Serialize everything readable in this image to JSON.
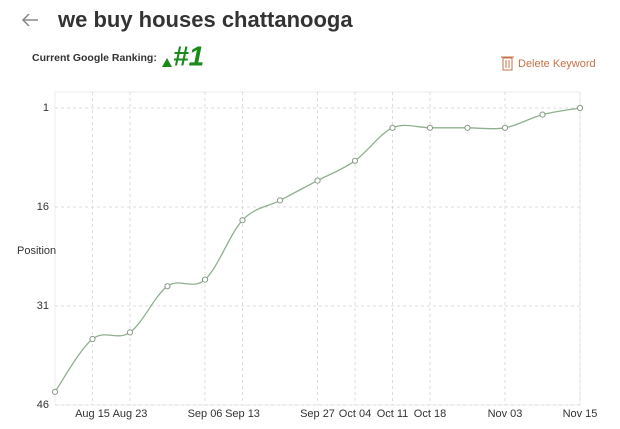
{
  "header": {
    "title": "we buy houses chattanooga"
  },
  "ranking": {
    "label": "Current Google Ranking:",
    "value": "#1"
  },
  "action": {
    "label": "Delete Keyword"
  },
  "chart_data": {
    "type": "line",
    "y_label": "Position",
    "categories": [
      null,
      "Aug 15",
      "Aug 23",
      null,
      "Sep 06",
      "Sep 13",
      null,
      "Sep 27",
      "Oct 04",
      "Oct 11",
      "Oct 18",
      null,
      "Nov 03",
      null,
      "Nov 15"
    ],
    "values": [
      44,
      36,
      35,
      28,
      27,
      18,
      15,
      12,
      9,
      4,
      4,
      4,
      4,
      2,
      1
    ],
    "color": "#8fb08f",
    "ylim": [
      46,
      1
    ],
    "yticks": [
      1,
      16,
      31,
      46
    ],
    "grid": true
  }
}
